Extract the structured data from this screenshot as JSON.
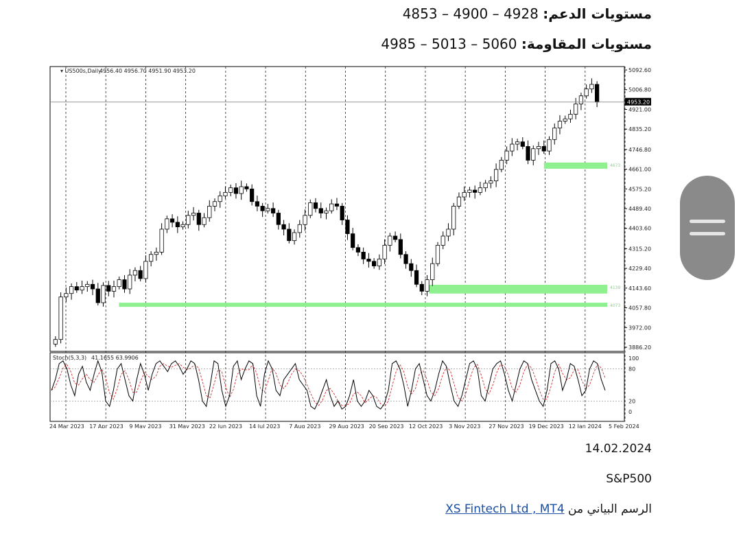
{
  "header": {
    "support_label": "مستويات الدعم:",
    "support_values": "4928 – 4900 – 4853",
    "resistance_label": "مستويات المقاومة:",
    "resistance_values": "5060 – 5013 – 4985"
  },
  "footer": {
    "date": "14.02.2024",
    "symbol": "S&P500",
    "source_prefix": "الرسم البياني من",
    "source_link": "XS Fintech Ltd , MT4"
  },
  "chart_data": {
    "type": "candlestick",
    "symbol_label": "US500s,Daily",
    "ohlc_label": "4956.40 4956.70 4951.90 4953.20",
    "current_price": "4953.20",
    "price_axis": {
      "min": 3886.2,
      "max": 5092.6,
      "ticks": [
        "5092.60",
        "5006.80",
        "4921.00",
        "4835.20",
        "4746.80",
        "4661.00",
        "4575.20",
        "4489.40",
        "4403.60",
        "4315.20",
        "4229.40",
        "4143.60",
        "4057.80",
        "3972.00",
        "3886.20"
      ]
    },
    "x_labels": [
      "24 Mar 2023",
      "17 Apr 2023",
      "9 May 2023",
      "31 May 2023",
      "22 Jun 2023",
      "14 Jul 2023",
      "7 Aug 2023",
      "29 Aug 2023",
      "20 Sep 2023",
      "12 Oct 2023",
      "3 Nov 2023",
      "27 Nov 2023",
      "19 Dec 2023",
      "12 Jan 2024",
      "5 Feb 2024"
    ],
    "close_path": [
      3920,
      4105,
      4120,
      4150,
      4135,
      4150,
      4160,
      4140,
      4080,
      4155,
      4130,
      4150,
      4180,
      4140,
      4200,
      4220,
      4185,
      4260,
      4290,
      4300,
      4400,
      4445,
      4430,
      4410,
      4420,
      4460,
      4470,
      4420,
      4450,
      4500,
      4520,
      4545,
      4560,
      4580,
      4555,
      4585,
      4575,
      4520,
      4500,
      4480,
      4490,
      4470,
      4420,
      4400,
      4350,
      4385,
      4420,
      4460,
      4515,
      4490,
      4470,
      4480,
      4510,
      4500,
      4440,
      4380,
      4320,
      4300,
      4270,
      4260,
      4240,
      4270,
      4330,
      4370,
      4355,
      4290,
      4250,
      4220,
      4160,
      4130,
      4180,
      4250,
      4330,
      4370,
      4400,
      4500,
      4540,
      4560,
      4570,
      4560,
      4580,
      4600,
      4610,
      4660,
      4700,
      4740,
      4770,
      4780,
      4760,
      4700,
      4750,
      4760,
      4740,
      4790,
      4840,
      4870,
      4880,
      4900,
      4945,
      4980,
      5010,
      5030,
      4953
    ],
    "green_zones": [
      {
        "price_low": 4663,
        "price_high": 4690,
        "label": "4673"
      },
      {
        "price_low": 4120,
        "price_high": 4158,
        "label": "4139"
      },
      {
        "price_low": 4062,
        "price_high": 4080,
        "label": "4073"
      }
    ],
    "indicator": {
      "name": "Stoch(5,3,3)",
      "values_label": "41.1655 63.9906",
      "ylim": [
        0,
        100
      ],
      "levels": [
        80,
        20
      ],
      "tick_labels": [
        "100",
        "80",
        "20",
        "0"
      ],
      "main_line_color": "#000000",
      "signal_line_color": "#d62728",
      "main_values": [
        40,
        60,
        90,
        95,
        80,
        50,
        30,
        70,
        85,
        55,
        40,
        70,
        95,
        75,
        20,
        10,
        40,
        80,
        90,
        60,
        30,
        20,
        60,
        90,
        70,
        40,
        70,
        90,
        95,
        85,
        75,
        90,
        95,
        85,
        70,
        80,
        95,
        90,
        60,
        20,
        10,
        50,
        95,
        90,
        40,
        10,
        30,
        85,
        95,
        60,
        80,
        95,
        90,
        30,
        10,
        70,
        95,
        80,
        40,
        30,
        60,
        70,
        80,
        90,
        60,
        50,
        40,
        10,
        5,
        20,
        40,
        60,
        30,
        10,
        20,
        5,
        10,
        30,
        60,
        20,
        10,
        20,
        40,
        30,
        10,
        5,
        15,
        40,
        90,
        95,
        80,
        50,
        10,
        40,
        80,
        90,
        60,
        30,
        20,
        40,
        70,
        95,
        85,
        50,
        20,
        10,
        30,
        60,
        90,
        95,
        80,
        30,
        20,
        50,
        80,
        90,
        95,
        70,
        40,
        20,
        50,
        80,
        95,
        90,
        60,
        40,
        20,
        10,
        40,
        90,
        95,
        80,
        40,
        60,
        90,
        85,
        60,
        30,
        40,
        80,
        95,
        90,
        60,
        40
      ]
    },
    "colors": {
      "zone": "#8ef08e",
      "grid": "#222222",
      "candle": "#000000",
      "current_line": "#8a8a8a"
    }
  }
}
